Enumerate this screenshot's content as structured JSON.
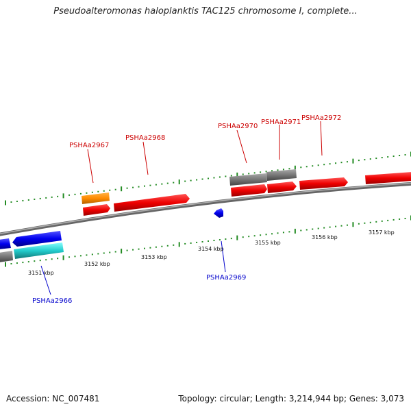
{
  "title": "Pseudoalteromonas haloplanktis TAC125 chromosome I, complete...",
  "footer": {
    "accession": "Accession: NC_007481",
    "summary": "Topology: circular; Length: 3,214,944 bp; Genes: 3,073"
  },
  "scale_labels": [
    "3151 kbp",
    "3152 kbp",
    "3153 kbp",
    "3154 kbp",
    "3155 kbp",
    "3156 kbp",
    "3157 kbp"
  ],
  "gene_labels": [
    {
      "name": "PSHAa2966",
      "strand": "reverse",
      "color": "#0000cc"
    },
    {
      "name": "PSHAa2967",
      "strand": "forward",
      "color": "#cc0000"
    },
    {
      "name": "PSHAa2968",
      "strand": "forward",
      "color": "#cc0000"
    },
    {
      "name": "PSHAa2969",
      "strand": "reverse",
      "color": "#0000cc"
    },
    {
      "name": "PSHAa2970",
      "strand": "forward",
      "color": "#cc0000"
    },
    {
      "name": "PSHAa2971",
      "strand": "forward",
      "color": "#cc0000"
    },
    {
      "name": "PSHAa2972",
      "strand": "forward",
      "color": "#cc0000"
    }
  ],
  "colors": {
    "forward_gene": "#ee1111",
    "reverse_gene": "#1111ee",
    "rna_gene": "#ff8c00",
    "cds_track": "#777777",
    "cyan_feature": "#22cccc",
    "backbone": "#888888",
    "tick": "#228b22"
  }
}
